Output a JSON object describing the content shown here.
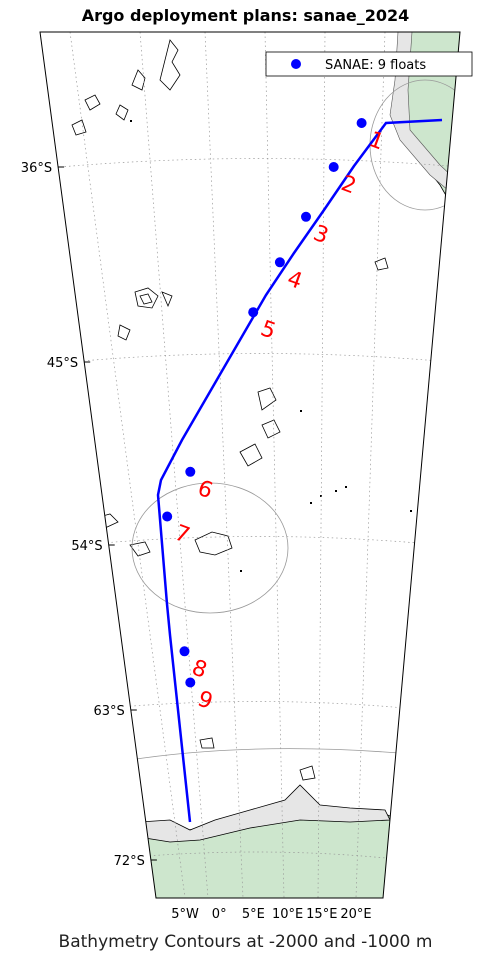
{
  "title": "Argo deployment plans: sanae_2024",
  "caption": "Bathymetry Contours at -2000 and -1000 m",
  "legend": {
    "label": "SANAE:  9 floats"
  },
  "lat_ticks": [
    {
      "value": -36,
      "label": "36°S"
    },
    {
      "value": -45,
      "label": "45°S"
    },
    {
      "value": -54,
      "label": "54°S"
    },
    {
      "value": -63,
      "label": "63°S"
    },
    {
      "value": -72,
      "label": "72°S"
    }
  ],
  "lon_ticks": [
    {
      "value": -5,
      "label": "5°W"
    },
    {
      "value": 0,
      "label": "0°"
    },
    {
      "value": 5,
      "label": "5°E"
    },
    {
      "value": 10,
      "label": "10°E"
    },
    {
      "value": 15,
      "label": "15°E"
    },
    {
      "value": 20,
      "label": "20°E"
    }
  ],
  "floats": [
    {
      "id": "1",
      "lat": -33.9,
      "lon": 18.3
    },
    {
      "id": "2",
      "lat": -36.0,
      "lon": 16.0
    },
    {
      "id": "3",
      "lat": -38.3,
      "lon": 13.6
    },
    {
      "id": "4",
      "lat": -40.4,
      "lon": 11.2
    },
    {
      "id": "5",
      "lat": -42.7,
      "lon": 8.6
    },
    {
      "id": "6",
      "lat": -50.4,
      "lon": 1.4
    },
    {
      "id": "7",
      "lat": -52.6,
      "lon": -1.5
    },
    {
      "id": "8",
      "lat": -59.8,
      "lon": -1.2
    },
    {
      "id": "9",
      "lat": -61.5,
      "lon": -0.9
    }
  ],
  "colors": {
    "track": "#0000ff",
    "float_marker": "#0000ff",
    "float_label": "#ff0000",
    "land_green": "#cde6cd",
    "ice_gray": "#e6e6e6",
    "contour": "#000000",
    "grid": "#999999"
  }
}
